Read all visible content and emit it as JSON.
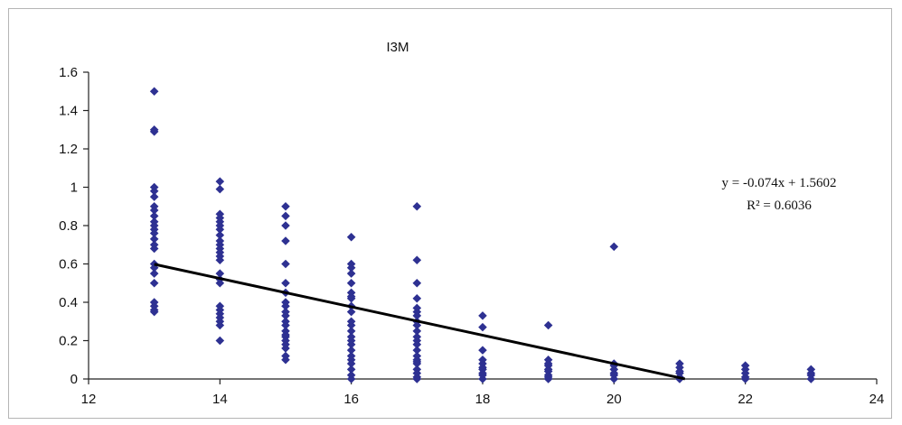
{
  "chart_data": {
    "type": "scatter",
    "title": "I3M",
    "xlim": [
      12,
      24
    ],
    "ylim": [
      0,
      1.6
    ],
    "x_ticks": [
      "12",
      "14",
      "16",
      "18",
      "20",
      "22",
      "24"
    ],
    "y_ticks": [
      "0",
      "0.2",
      "0.4",
      "0.6",
      "0.8",
      "1",
      "1.2",
      "1.4",
      "1.6"
    ],
    "grid": false,
    "marker_color": "#2e3192",
    "trendline_color": "#000000",
    "series": [
      {
        "x": [
          13,
          13,
          13,
          13,
          13,
          13,
          13,
          13,
          13,
          13,
          13,
          13,
          13,
          13,
          13,
          13,
          13,
          13,
          13,
          13,
          13,
          13,
          13,
          13,
          14,
          14,
          14,
          14,
          14,
          14,
          14,
          14,
          14,
          14,
          14,
          14,
          14,
          14,
          14,
          14,
          14,
          14,
          14,
          14,
          14,
          14,
          14,
          14,
          15,
          15,
          15,
          15,
          15,
          15,
          15,
          15,
          15,
          15,
          15,
          15,
          15,
          15,
          15,
          15,
          15,
          15,
          15,
          15,
          15,
          16,
          16,
          16,
          16,
          16,
          16,
          16,
          16,
          16,
          16,
          16,
          16,
          16,
          16,
          16,
          16,
          16,
          16,
          16,
          16,
          16,
          16,
          16,
          17,
          17,
          17,
          17,
          17,
          17,
          17,
          17,
          17,
          17,
          17,
          17,
          17,
          17,
          17,
          17,
          17,
          17,
          17,
          17,
          17,
          17,
          18,
          18,
          18,
          18,
          18,
          18,
          18,
          18,
          18,
          18,
          19,
          19,
          19,
          19,
          19,
          19,
          19,
          19,
          19,
          20,
          20,
          20,
          20,
          20,
          20,
          20,
          21,
          21,
          21,
          21,
          21,
          21,
          22,
          22,
          22,
          22,
          22,
          23,
          23,
          23,
          23
        ],
        "y": [
          1.5,
          1.3,
          1.29,
          1.0,
          0.98,
          0.95,
          0.9,
          0.88,
          0.85,
          0.82,
          0.8,
          0.78,
          0.76,
          0.73,
          0.7,
          0.68,
          0.6,
          0.58,
          0.55,
          0.5,
          0.4,
          0.38,
          0.36,
          0.35,
          1.03,
          0.99,
          0.86,
          0.84,
          0.82,
          0.8,
          0.78,
          0.75,
          0.72,
          0.7,
          0.68,
          0.66,
          0.64,
          0.62,
          0.55,
          0.52,
          0.5,
          0.38,
          0.36,
          0.34,
          0.32,
          0.3,
          0.28,
          0.2,
          0.9,
          0.85,
          0.8,
          0.72,
          0.6,
          0.5,
          0.45,
          0.4,
          0.38,
          0.35,
          0.33,
          0.3,
          0.28,
          0.25,
          0.23,
          0.22,
          0.2,
          0.18,
          0.16,
          0.12,
          0.1,
          0.74,
          0.6,
          0.58,
          0.55,
          0.5,
          0.45,
          0.43,
          0.42,
          0.38,
          0.35,
          0.3,
          0.28,
          0.25,
          0.22,
          0.2,
          0.18,
          0.15,
          0.12,
          0.1,
          0.08,
          0.05,
          0.02,
          0.0,
          0.9,
          0.62,
          0.5,
          0.42,
          0.37,
          0.35,
          0.33,
          0.3,
          0.28,
          0.25,
          0.22,
          0.2,
          0.18,
          0.15,
          0.12,
          0.1,
          0.09,
          0.08,
          0.05,
          0.03,
          0.01,
          0.0,
          0.33,
          0.27,
          0.15,
          0.1,
          0.08,
          0.06,
          0.05,
          0.03,
          0.02,
          0.0,
          0.28,
          0.1,
          0.08,
          0.07,
          0.05,
          0.04,
          0.02,
          0.01,
          0.0,
          0.69,
          0.08,
          0.07,
          0.05,
          0.03,
          0.02,
          0.0,
          0.08,
          0.06,
          0.04,
          0.03,
          0.01,
          0.0,
          0.07,
          0.05,
          0.03,
          0.01,
          0.0,
          0.05,
          0.03,
          0.02,
          0.0
        ]
      }
    ],
    "trendline": {
      "slope": -0.074,
      "intercept": 1.5602,
      "x_start": 13,
      "x_end": 21.08,
      "equation": "y = -0.074x + 1.5602",
      "r_squared": "R² = 0.6036"
    }
  }
}
